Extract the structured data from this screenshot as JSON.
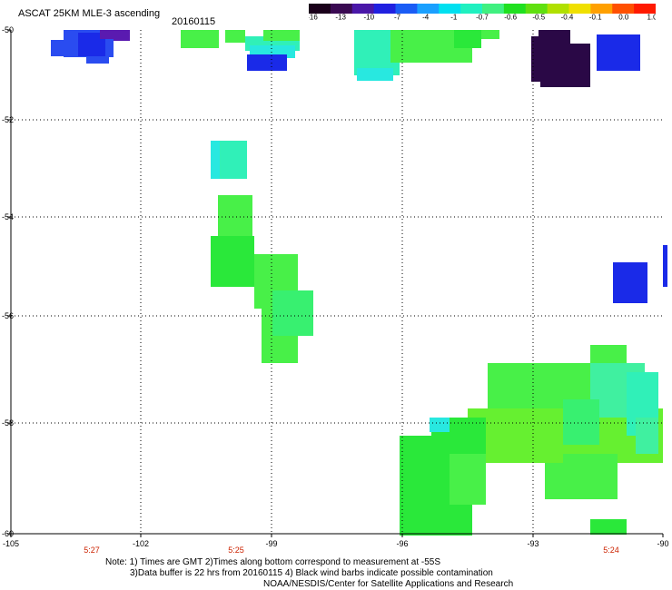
{
  "title": "ASCAT 25KM MLE-3 ascending",
  "date": "20160115",
  "colorbar": {
    "labels": [
      "-16",
      "-13",
      "-10",
      "-7",
      "-4",
      "-1",
      "-0.7",
      "-0.6",
      "-0.5",
      "-0.4",
      "-0.1",
      "0.0",
      "1.0"
    ],
    "colors": [
      "#1a001a",
      "#3a0a52",
      "#4a17a8",
      "#2020e0",
      "#1a5cf5",
      "#1aa0ff",
      "#00e0f0",
      "#20f0c0",
      "#40f080",
      "#20e020",
      "#60e010",
      "#b0e000",
      "#f0e000",
      "#ffa000",
      "#ff5000",
      "#ff1a00"
    ]
  },
  "axes": {
    "x_ticks": [
      "-105",
      "-102",
      "-99",
      "-96",
      "-93",
      "-90"
    ],
    "y_ticks": [
      "-50",
      "-52",
      "-54",
      "-56",
      "-58",
      "-60"
    ]
  },
  "time_labels": [
    "5:27",
    "5:25",
    "5:24"
  ],
  "time_label_color": "#cc2200",
  "notes": {
    "line1": "Note: 1) Times are GMT 2)Times along bottom correspond to measurement at -55S",
    "line2": "3)Data buffer is 22 hrs from 20160115 4) Black wind barbs indicate possible contamination",
    "line3": "NOAA/NESDIS/Center for Satellite Applications and Research"
  },
  "grid": true,
  "grid_style": "dotted"
}
